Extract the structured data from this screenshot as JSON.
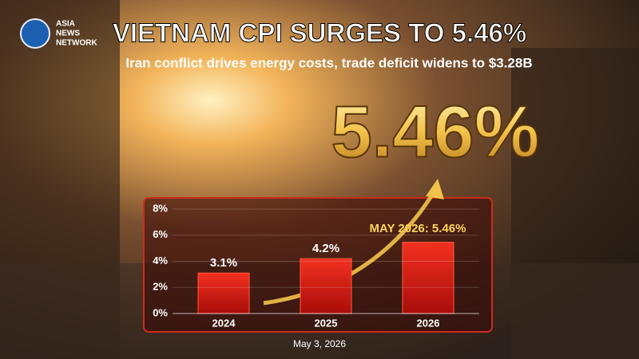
{
  "logo": [
    "ASIA",
    "NEWS",
    "NETWORK"
  ],
  "chart_data": {
    "type": "bar",
    "title": "VIETNAM CPI SURGES TO 5.46%",
    "subtitle": "Iran conflict drives energy costs, trade deficit widens to $3.28B",
    "headline_figure": "5.46%",
    "annotation": "MAY 2026: 5.46%",
    "date": "May 3, 2026",
    "categories": [
      "2024",
      "2025",
      "2026"
    ],
    "values": [
      3.1,
      4.2,
      5.46
    ],
    "value_labels": [
      "3.1%",
      "4.2%",
      null
    ],
    "color": "#d0150f",
    "ylim": [
      0,
      8
    ],
    "yticks": [
      {
        "value": 0,
        "label": "0%"
      },
      {
        "value": 2,
        "label": "2%"
      },
      {
        "value": 4,
        "label": "4%"
      },
      {
        "value": 6,
        "label": "6%"
      },
      {
        "value": 8,
        "label": "8%"
      }
    ],
    "grid": true
  }
}
